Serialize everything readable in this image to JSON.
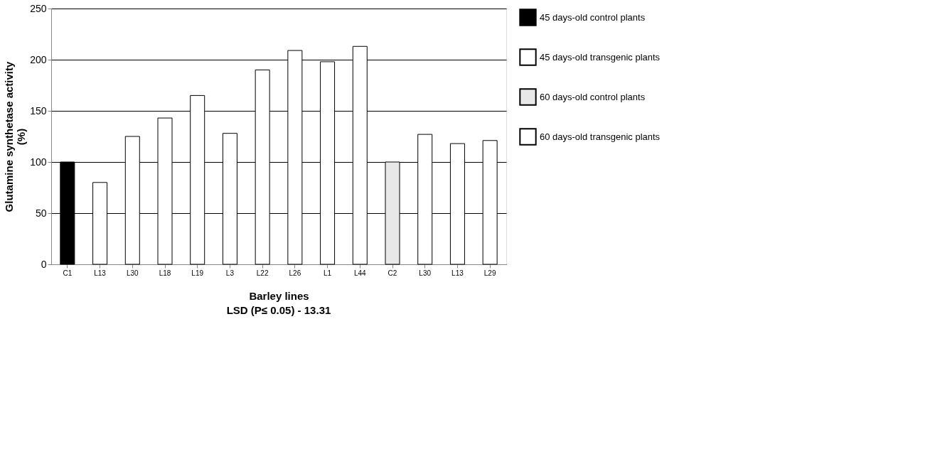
{
  "chart_data": {
    "type": "bar",
    "xlabel": "Barley lines",
    "ylabel": "Glutamine synthetase activity\n(%)",
    "categories": [
      "C1",
      "L13",
      "L30",
      "L18",
      "L19",
      "L3",
      "L22",
      "L26",
      "L1",
      "L44",
      "C2",
      "L30",
      "L13",
      "L29"
    ],
    "series": [
      {
        "name": "45 days-old control plants",
        "color": "#000000",
        "values": [
          100,
          null,
          null,
          null,
          null,
          null,
          null,
          null,
          null,
          null,
          null,
          null,
          null,
          null
        ]
      },
      {
        "name": "45 days-old transgenic plants",
        "color": "#ffffff",
        "values": [
          null,
          80,
          125,
          143,
          165,
          128,
          190,
          209,
          198,
          213,
          null,
          null,
          null,
          null
        ]
      },
      {
        "name": "60 days-old control plants",
        "color": "#e8e8e8",
        "values": [
          null,
          null,
          null,
          null,
          null,
          null,
          null,
          null,
          null,
          null,
          100,
          null,
          null,
          null
        ]
      },
      {
        "name": "60 days-old transgenic plants",
        "color": "#ffffff",
        "values": [
          null,
          null,
          null,
          null,
          null,
          null,
          null,
          null,
          null,
          null,
          null,
          127,
          118,
          121
        ]
      }
    ],
    "ylim": [
      0,
      250
    ],
    "yticks": [
      0,
      50,
      100,
      150,
      200,
      250
    ],
    "grid": "y",
    "legend": "right",
    "annotations": [
      "LSD (P≤ 0.05) - 13.31"
    ]
  }
}
